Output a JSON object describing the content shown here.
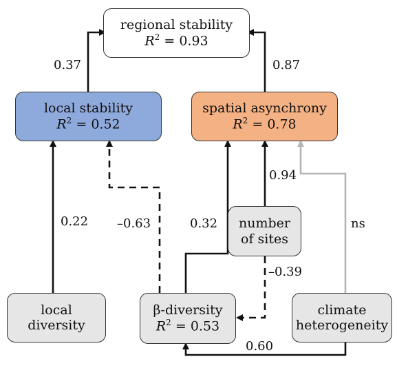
{
  "nodes": {
    "regional_stability": {
      "label": "regional stability",
      "r2": "0.93",
      "fill": "#ffffff"
    },
    "local_stability": {
      "label": "local stability",
      "r2": "0.52",
      "fill": "#8ea9db"
    },
    "spatial_asynchrony": {
      "label": "spatial asynchrony",
      "r2": "0.78",
      "fill": "#f4b183"
    },
    "number_of_sites": {
      "line1": "number",
      "line2": "of sites",
      "fill": "#e6e6e6"
    },
    "local_diversity": {
      "line1": "local",
      "line2": "diversity",
      "fill": "#e6e6e6"
    },
    "beta_diversity": {
      "label": "β-diversity",
      "r2": "0.53",
      "fill": "#e6e6e6"
    },
    "climate_heterogeneity": {
      "line1": "climate",
      "line2": "heterogeneity",
      "fill": "#e6e6e6"
    }
  },
  "paths": {
    "local_to_regional": "0.37",
    "async_to_regional": "0.87",
    "localdiv_to_localstab": "0.22",
    "beta_to_localstab": "–0.63",
    "beta_to_async": "0.32",
    "sites_to_async": "0.94",
    "climate_to_async": "ns",
    "sites_to_beta": "–0.39",
    "climate_to_beta": "0.60"
  },
  "r2_prefix": "R",
  "r2_sup": "2",
  "r2_eq": " = "
}
